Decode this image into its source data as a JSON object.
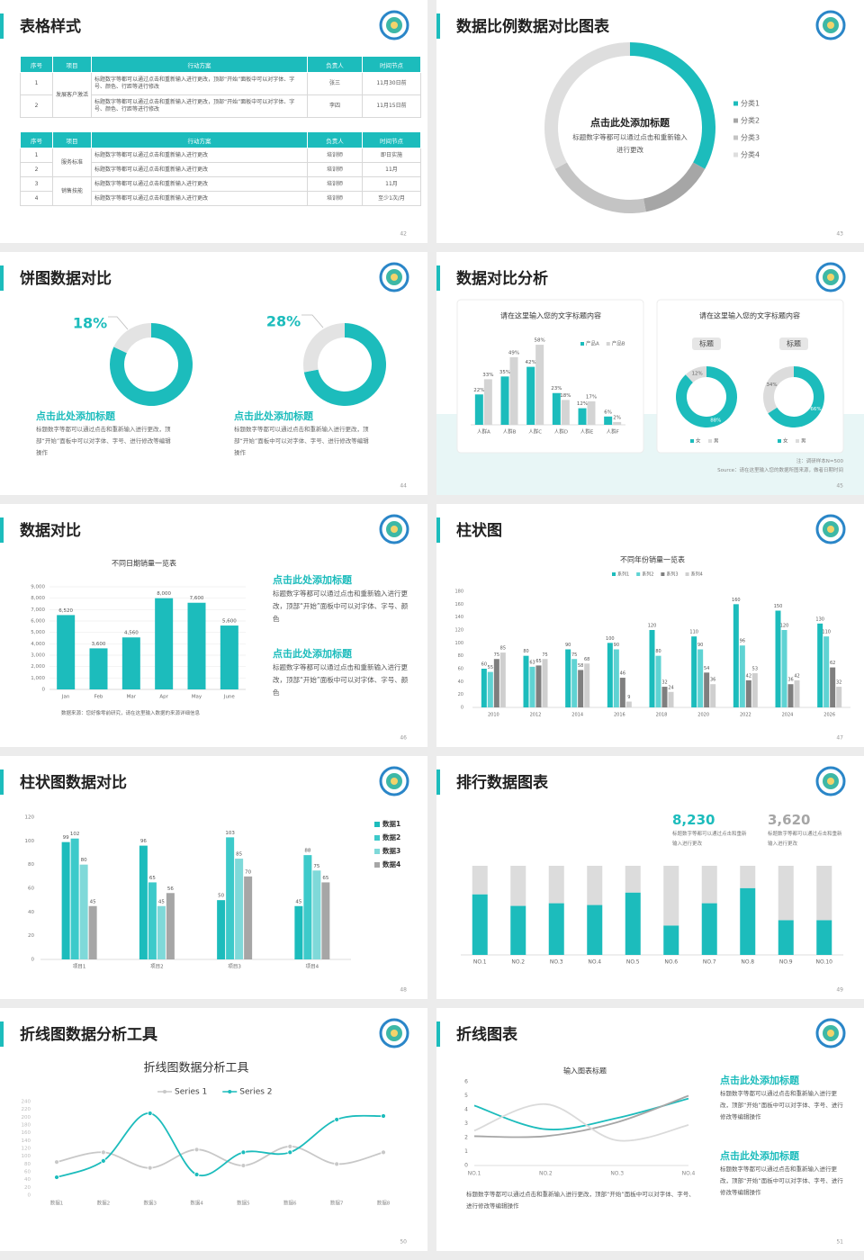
{
  "slides": [
    {
      "title": "表格样式",
      "page": "42",
      "tables": [
        {
          "header": [
            "序号",
            "项目",
            "行动方案",
            "负责人",
            "时间节点"
          ],
          "groups": [
            {
              "project": "发展客户激活",
              "rows": [
                [
                  "1",
                  "标题数字等都可以通过点击和重新输入进行更改，顶部“开始”面板中可以对字体、字号、颜色、行距等进行修改",
                  "张三",
                  "11月30日前"
                ],
                [
                  "2",
                  "标题数字等都可以通过点击和重新输入进行更改，顶部“开始”面板中可以对字体、字号、颜色、行距等进行修改",
                  "李四",
                  "11月15日前"
                ]
              ]
            }
          ]
        },
        {
          "header": [
            "序号",
            "项目",
            "行动方案",
            "负责人",
            "时间节点"
          ],
          "groups": [
            {
              "project": "服务标准",
              "rows": [
                [
                  "1",
                  "标题数字等都可以通过点击和重新输入进行更改",
                  "培训师",
                  "即日实施"
                ],
                [
                  "2",
                  "标题数字等都可以通过点击和重新输入进行更改",
                  "培训师",
                  "11月"
                ]
              ]
            },
            {
              "project": "销售技能",
              "rows": [
                [
                  "3",
                  "标题数字等都可以通过点击和重新输入进行更改",
                  "培训师",
                  "11月"
                ],
                [
                  "4",
                  "标题数字等都可以通过点击和重新输入进行更改",
                  "培训师",
                  "至少1次/月"
                ]
              ]
            }
          ]
        }
      ]
    },
    {
      "title": "数据比例数据对比图表",
      "page": "43",
      "heading": "点击此处添加标题",
      "text": "标题数字等都可以通过点击和重新输入进行更改"
    },
    {
      "title": "饼图数据对比",
      "page": "44",
      "items": [
        {
          "heading": "点击此处添加标题",
          "text": "标题数字等都可以通过点击和重新输入进行更改，顶部“开始”面板中可以对字体、字号、进行修改等编辑操作"
        },
        {
          "heading": "点击此处添加标题",
          "text": "标题数字等都可以通过点击和重新输入进行更改，顶部“开始”面板中可以对字体、字号、进行修改等编辑操作"
        }
      ]
    },
    {
      "title": "数据对比分析",
      "page": "45",
      "note": "注：调研样本N=500",
      "source": "Source：请在这里输入您的数据所图来源，做者日期时间"
    },
    {
      "title": "数据对比",
      "page": "46",
      "source": "数据来源：您好像零前研究，请在这里输入数据的来源详细信息",
      "items": [
        {
          "heading": "点击此处添加标题",
          "text": "标题数字等都可以通过点击和重新输入进行更改，顶部“开始”面板中可以对字体、字号、颜色"
        },
        {
          "heading": "点击此处添加标题",
          "text": "标题数字等都可以通过点击和重新输入进行更改，顶部“开始”面板中可以对字体、字号、颜色"
        }
      ]
    },
    {
      "title": "柱状图",
      "page": "47"
    },
    {
      "title": "柱状图数据对比",
      "page": "48"
    },
    {
      "title": "排行数据图表",
      "page": "49",
      "stats": [
        {
          "value": "8,230",
          "text": "标题数字等都可以通过点击和重新输入进行更改"
        },
        {
          "value": "3,620",
          "text": "标题数字等都可以通过点击和重新输入进行更改"
        }
      ]
    },
    {
      "title": "折线图数据分析工具",
      "page": "50"
    },
    {
      "title": "折线图表",
      "page": "51",
      "items": [
        {
          "heading": "点击此处添加标题",
          "text": "标题数字等都可以通过点击和重新输入进行更改，顶部“开始”面板中可以对字体、字号、进行修改等编辑操作"
        },
        {
          "heading": "点击此处添加标题",
          "text": "标题数字等都可以通过点击和重新输入进行更改，顶部“开始”面板中可以对字体、字号、进行修改等编辑操作"
        }
      ],
      "text": "标题数字等都可以通过点击和重新输入进行更改，顶部“开始”面板中可以对字体、字号、进行修改等编辑操作"
    }
  ],
  "chart_data": [
    {
      "type": "pie",
      "categories": [
        "分类1",
        "分类2",
        "分类3",
        "分类4"
      ],
      "values": [
        33,
        14,
        20,
        33
      ],
      "colors": [
        "#1cbcbc",
        "#a6a6a6",
        "#c4c4c4",
        "#dedede"
      ],
      "legend": "right"
    },
    {
      "type": "pie",
      "values": [
        82,
        18
      ],
      "colors": [
        "#1cbcbc",
        "#e3e3e3"
      ],
      "label": "18%"
    },
    {
      "type": "pie",
      "values": [
        72,
        28
      ],
      "colors": [
        "#1cbcbc",
        "#e3e3e3"
      ],
      "label": "28%"
    },
    {
      "type": "bar",
      "title": "请在这里输入您的文字标题内容",
      "categories": [
        "人群A",
        "人群B",
        "人群C",
        "人群D",
        "人群E",
        "人群F"
      ],
      "series": [
        {
          "name": "产品A",
          "color": "#1cbcbc",
          "values": [
            22,
            35,
            42,
            23,
            12,
            6
          ],
          "value_labels": [
            "22%",
            "35%",
            "42%",
            "23%",
            "12%",
            "6%"
          ]
        },
        {
          "name": "产品B",
          "color": "#d4d4d4",
          "values": [
            33,
            49,
            58,
            18,
            17,
            2
          ],
          "value_labels": [
            "33%",
            "49%",
            "58%",
            "18%",
            "17%",
            "2%"
          ]
        }
      ],
      "ylim": [
        0,
        60
      ],
      "legend": "top"
    },
    {
      "type": "pie",
      "title": "请在这里输入您的文字标题内容",
      "label": "标题",
      "categories": [
        "女",
        "男"
      ],
      "values": [
        88,
        12
      ],
      "value_labels": [
        "88%",
        "12%"
      ],
      "colors": [
        "#1cbcbc",
        "#dcdcdc"
      ],
      "legend": "bottom"
    },
    {
      "type": "pie",
      "label": "标题",
      "categories": [
        "女",
        "男"
      ],
      "values": [
        66,
        34
      ],
      "value_labels": [
        "66%",
        "34%"
      ],
      "colors": [
        "#1cbcbc",
        "#dcdcdc"
      ],
      "legend": "bottom"
    },
    {
      "type": "bar",
      "title": "不同日期销量一览表",
      "categories": [
        "Jan",
        "Feb",
        "Mar",
        "Apr",
        "May",
        "June"
      ],
      "values": [
        6520,
        3600,
        4560,
        8000,
        7600,
        5600
      ],
      "value_labels": [
        "6,520",
        "3,600",
        "4,560",
        "8,000",
        "7,600",
        "5,600"
      ],
      "color": "#1cbcbc",
      "ylim": [
        0,
        9000
      ],
      "yticks": [
        0,
        {
          "value": 1000,
          "label": "1,000"
        },
        {
          "value": 2000,
          "label": "2,000"
        },
        {
          "value": 3000,
          "label": "3,000"
        },
        {
          "value": 4000,
          "label": "4,000"
        },
        {
          "value": 5000,
          "label": "5,000"
        },
        {
          "value": 6000,
          "label": "6,000"
        },
        {
          "value": 7000,
          "label": "7,000"
        },
        {
          "value": 8000,
          "label": "8,000"
        },
        {
          "value": 9000,
          "label": "9,000"
        }
      ],
      "grid": true
    },
    {
      "type": "bar",
      "title": "不同年份销量一览表",
      "categories": [
        "2010",
        "2012",
        "2014",
        "2016",
        "2018",
        "2020",
        "2022",
        "2024",
        "2026"
      ],
      "series": [
        {
          "name": "系列1",
          "color": "#1cbcbc",
          "values": [
            60,
            80,
            90,
            100,
            120,
            110,
            160,
            150,
            130
          ]
        },
        {
          "name": "系列2",
          "color": "#5fd3d3",
          "values": [
            55,
            63,
            75,
            90,
            80,
            90,
            96,
            120,
            110
          ]
        },
        {
          "name": "系列3",
          "color": "#7f7f7f",
          "values": [
            75,
            65,
            58,
            46,
            32,
            54,
            42,
            36,
            62
          ]
        },
        {
          "name": "系列4",
          "color": "#cfcfcf",
          "values": [
            85,
            75,
            68,
            9,
            24,
            36,
            53,
            42,
            32
          ]
        }
      ],
      "ylim": [
        0,
        180
      ],
      "yticks": [
        0,
        20,
        40,
        60,
        80,
        100,
        120,
        140,
        160,
        180
      ],
      "legend": "top"
    },
    {
      "type": "bar",
      "categories": [
        "项目1",
        "项目2",
        "项目3",
        "项目4"
      ],
      "series": [
        {
          "name": "数据1",
          "color": "#1cbcbc",
          "values": [
            99,
            96,
            50,
            45
          ]
        },
        {
          "name": "数据2",
          "color": "#3dcaca",
          "values": [
            102,
            65,
            103,
            88
          ]
        },
        {
          "name": "数据3",
          "color": "#7fd9d9",
          "values": [
            80,
            45,
            85,
            75
          ]
        },
        {
          "name": "数据4",
          "color": "#a6a6a6",
          "values": [
            45,
            56,
            70,
            65
          ]
        }
      ],
      "ylim": [
        0,
        120
      ],
      "yticks": [
        0,
        20,
        40,
        60,
        80,
        100,
        120
      ],
      "legend": "right"
    },
    {
      "type": "bar",
      "stacked": true,
      "categories": [
        "NO.1",
        "NO.2",
        "NO.3",
        "NO.4",
        "NO.5",
        "NO.6",
        "NO.7",
        "NO.8",
        "NO.9",
        "NO.10"
      ],
      "series": [
        {
          "color": "#1cbcbc",
          "values": [
            68,
            55,
            58,
            56,
            70,
            33,
            58,
            75,
            39,
            39
          ]
        },
        {
          "color": "#dcdcdc",
          "values": [
            32,
            45,
            42,
            44,
            30,
            67,
            42,
            25,
            61,
            61
          ]
        }
      ],
      "ylim": [
        0,
        100
      ]
    },
    {
      "type": "line",
      "title": "折线图数据分析工具",
      "categories": [
        "数据1",
        "数据2",
        "数据3",
        "数据4",
        "数据5",
        "数据6",
        "数据7",
        "数据8"
      ],
      "series": [
        {
          "name": "Series 1",
          "color": "#c8c8c8",
          "values": [
            85,
            110,
            70,
            117,
            76,
            125,
            80,
            110
          ]
        },
        {
          "name": "Series 2",
          "color": "#1cbcbc",
          "values": [
            46,
            88,
            210,
            53,
            110,
            110,
            194,
            203
          ]
        }
      ],
      "ylim": [
        0,
        240
      ],
      "yticks": [
        0,
        20,
        40,
        60,
        80,
        100,
        120,
        140,
        160,
        180,
        200,
        220,
        240
      ],
      "smooth": true,
      "markers": true,
      "legend": "top"
    },
    {
      "type": "line",
      "title": "输入图表标题",
      "categories": [
        "NO.1",
        "NO.2",
        "NO.3",
        "NO.4"
      ],
      "series": [
        {
          "color": "#1cbcbc",
          "values": [
            4.3,
            2.6,
            3.4,
            4.8
          ]
        },
        {
          "color": "#a6a6a6",
          "values": [
            2.1,
            2.1,
            3.1,
            5.0
          ]
        },
        {
          "color": "#dadada",
          "values": [
            2.5,
            4.4,
            1.8,
            2.9
          ]
        }
      ],
      "ylim": [
        0,
        6
      ],
      "yticks": [
        0,
        1,
        2,
        3,
        4,
        5,
        6
      ],
      "smooth": true
    }
  ]
}
